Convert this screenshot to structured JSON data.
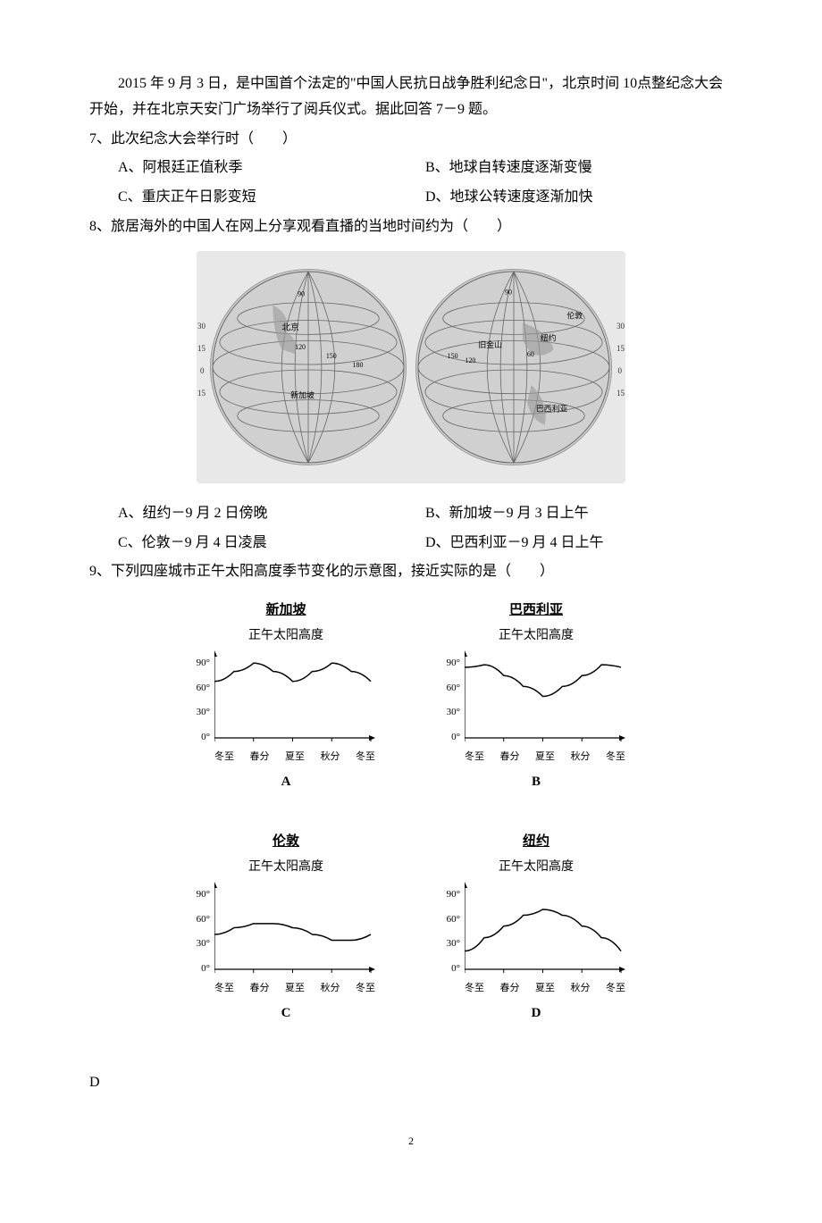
{
  "intro": "2015 年 9 月 3 日，是中国首个法定的\"中国人民抗日战争胜利纪念日\"，北京时间 10点整纪念大会开始，并在北京天安门广场举行了阅兵仪式。据此回答 7－9 题。",
  "q7": {
    "stem": "7、此次纪念大会举行时（　　）",
    "A": "A、阿根廷正值秋季",
    "B": "B、地球自转速度逐渐变慢",
    "C": "C、重庆正午日影变短",
    "D": "D、地球公转速度逐渐加快"
  },
  "q8": {
    "stem": "8、旅居海外的中国人在网上分享观看直播的当地时间约为（　　）",
    "A": "A、纽约－9 月 2 日傍晚",
    "B": "B、新加坡－9 月 3 日上午",
    "C": "C、伦敦－9 月 4 日凌晨",
    "D": "D、巴西利亚－9 月 4 日上午"
  },
  "q9": {
    "stem": "9、下列四座城市正午太阳高度季节变化的示意图，接近实际的是（　　）"
  },
  "globe": {
    "background": "#e8e8e8",
    "sphere_color": "#d0d0d0",
    "border_color": "#999999",
    "line_color": "#666666",
    "left": {
      "labels": [
        "北京",
        "90",
        "120",
        "150",
        "180",
        "30",
        "15",
        "0",
        "15",
        "新加坡"
      ]
    },
    "right": {
      "labels": [
        "90",
        "伦敦",
        "旧金山",
        "纽约",
        "60",
        "巴西利亚",
        "0",
        "15",
        "30",
        "120",
        "150"
      ]
    }
  },
  "charts": {
    "ylabel": "正午太阳高度",
    "yticks_deg": [
      "90°",
      "60°",
      "30°",
      "0°"
    ],
    "yticks_values": [
      90,
      60,
      30,
      0
    ],
    "ylim": [
      0,
      100
    ],
    "xticks": [
      "冬至",
      "春分",
      "夏至",
      "秋分",
      "冬至"
    ],
    "xticks_idx": [
      0,
      1,
      2,
      3,
      4
    ],
    "line_color": "#000000",
    "axis_color": "#000000",
    "background": "#ffffff",
    "line_width": 1.5,
    "title_fontsize": 15,
    "label_fontsize": 14,
    "tick_fontsize": 11,
    "series": {
      "A": {
        "title": "新加坡",
        "letter": "A",
        "x": [
          0,
          0.5,
          1,
          1.5,
          2,
          2.5,
          3,
          3.5,
          4
        ],
        "y": [
          68,
          80,
          90,
          80,
          68,
          80,
          90,
          80,
          68
        ]
      },
      "B": {
        "title": "巴西利亚",
        "letter": "B",
        "x": [
          0,
          0.5,
          1,
          1.5,
          2,
          2.5,
          3,
          3.5,
          4
        ],
        "y": [
          85,
          88,
          75,
          62,
          50,
          62,
          75,
          88,
          85
        ]
      },
      "C": {
        "title": "伦敦",
        "letter": "C",
        "x": [
          0,
          0.5,
          1,
          1.5,
          2,
          2.5,
          3,
          3.5,
          4
        ],
        "y": [
          42,
          50,
          55,
          55,
          50,
          42,
          35,
          35,
          42
        ]
      },
      "D": {
        "title": "纽约",
        "letter": "D",
        "x": [
          0,
          0.5,
          1,
          1.5,
          2,
          2.5,
          3,
          3.5,
          4
        ],
        "y": [
          22,
          38,
          52,
          65,
          72,
          65,
          52,
          38,
          22
        ]
      }
    }
  },
  "answer": "D",
  "page": "2"
}
